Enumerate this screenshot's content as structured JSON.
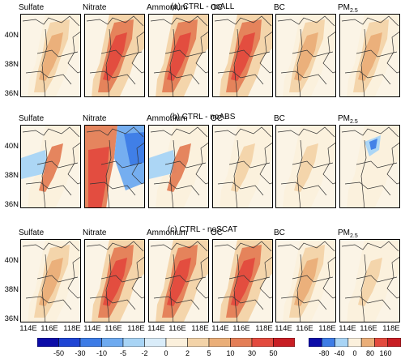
{
  "rows": [
    {
      "title": "(a) CTRL - noALL"
    },
    {
      "title": "(b) CTRL - noABS"
    },
    {
      "title": "(c) CTRL - noSCAT"
    }
  ],
  "panels": [
    "Sulfate",
    "Nitrate",
    "Ammonium",
    "OC",
    "BC",
    "PM"
  ],
  "pm_subscript": "2.5",
  "y_ticks": [
    "40N",
    "38N",
    "36N"
  ],
  "x_ticks": [
    "114E",
    "116E",
    "118E"
  ],
  "colorbar_main": {
    "labels": [
      "-50",
      "-30",
      "-10",
      "-5",
      "-2",
      "0",
      "2",
      "5",
      "10",
      "30",
      "50"
    ],
    "colors": [
      "#0c0ca8",
      "#1f45d4",
      "#3d7ce6",
      "#6eaaf0",
      "#a8d4f5",
      "#d9ecf9",
      "#fbf0dc",
      "#f3d3a8",
      "#eaae78",
      "#e47e56",
      "#e34a3e",
      "#c81e24"
    ]
  },
  "colorbar_pm": {
    "labels": [
      "-80",
      "-40",
      "0",
      "80",
      "160"
    ],
    "colors": [
      "#0c0ca8",
      "#3d7ce6",
      "#a8d4f5",
      "#fbf0dc",
      "#eaae78",
      "#e34a3e",
      "#c81e24"
    ]
  },
  "intensity_rows": [
    {
      "Sulfate": "pos-mid",
      "Nitrate": "pos-strong",
      "Ammonium": "pos-strong",
      "OC": "pos-strong",
      "BC": "pos-mid",
      "PM": "pos-mid"
    },
    {
      "Sulfate": "mixed",
      "Nitrate": "mixed-strong",
      "Ammonium": "mixed",
      "OC": "pos-weak",
      "BC": "pos-weak",
      "PM": "neg-weak"
    },
    {
      "Sulfate": "pos-mid",
      "Nitrate": "pos-strong",
      "Ammonium": "pos-strong",
      "OC": "pos-strong",
      "BC": "pos-mid",
      "PM": "pos-weak"
    }
  ]
}
